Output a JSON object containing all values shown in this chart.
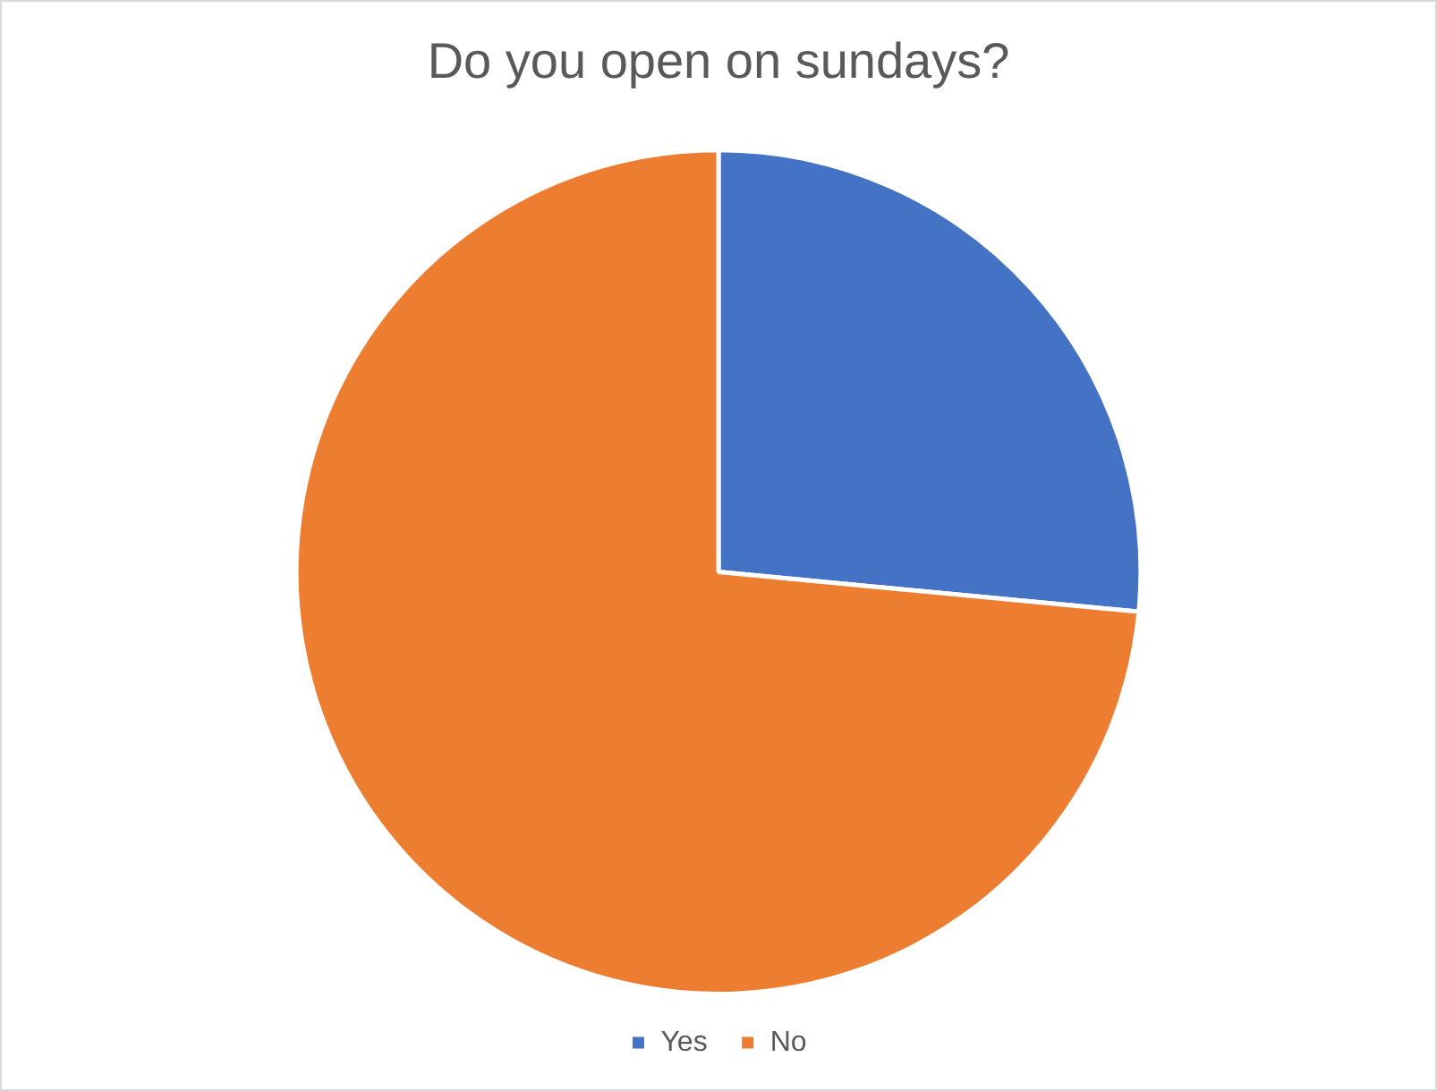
{
  "chart_data": {
    "type": "pie",
    "title": "Do you open on sundays?",
    "categories": [
      "Yes",
      "No"
    ],
    "values": [
      26.5,
      73.5
    ],
    "colors": [
      "#4472c4",
      "#ed7d31"
    ],
    "legend": "bottom"
  }
}
